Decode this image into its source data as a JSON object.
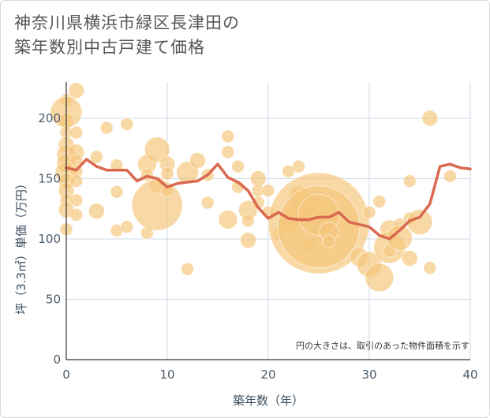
{
  "title_line1": "神奈川県横浜市緑区長津田の",
  "title_line2": "築年数別中古戸建て価格",
  "chart_data": {
    "type": "scatter",
    "title": "神奈川県横浜市緑区長津田の築年数別中古戸建て価格",
    "xlabel": "築年数（年）",
    "ylabel": "坪（3.3㎡）単価（万円）",
    "xlim": [
      0,
      40
    ],
    "ylim": [
      0,
      230
    ],
    "xticks": [
      0,
      10,
      20,
      30,
      40
    ],
    "yticks": [
      0,
      50,
      100,
      150,
      200
    ],
    "grid": true,
    "note": "円の大きさは、取引のあった物件面積を示す",
    "bubble_color": "#f4c67a",
    "line_color": "#d9694f",
    "bubbles": [
      {
        "x": 0,
        "y": 215,
        "s": 4
      },
      {
        "x": 0,
        "y": 205,
        "s": 10
      },
      {
        "x": 0,
        "y": 198,
        "s": 5
      },
      {
        "x": 0,
        "y": 188,
        "s": 4
      },
      {
        "x": 0,
        "y": 178,
        "s": 5
      },
      {
        "x": 0,
        "y": 170,
        "s": 6
      },
      {
        "x": 0,
        "y": 163,
        "s": 6
      },
      {
        "x": 0,
        "y": 155,
        "s": 7
      },
      {
        "x": 0,
        "y": 148,
        "s": 5
      },
      {
        "x": 0,
        "y": 140,
        "s": 5
      },
      {
        "x": 0,
        "y": 132,
        "s": 4
      },
      {
        "x": 0,
        "y": 124,
        "s": 5
      },
      {
        "x": 0,
        "y": 108,
        "s": 4
      },
      {
        "x": 1,
        "y": 223,
        "s": 5
      },
      {
        "x": 1,
        "y": 188,
        "s": 4
      },
      {
        "x": 1,
        "y": 172,
        "s": 5
      },
      {
        "x": 1,
        "y": 165,
        "s": 4
      },
      {
        "x": 1,
        "y": 156,
        "s": 4
      },
      {
        "x": 1,
        "y": 148,
        "s": 4
      },
      {
        "x": 1,
        "y": 132,
        "s": 4
      },
      {
        "x": 1,
        "y": 120,
        "s": 4
      },
      {
        "x": 3,
        "y": 168,
        "s": 4
      },
      {
        "x": 3,
        "y": 123,
        "s": 5
      },
      {
        "x": 4,
        "y": 192,
        "s": 4
      },
      {
        "x": 5,
        "y": 161,
        "s": 4
      },
      {
        "x": 5,
        "y": 139,
        "s": 4
      },
      {
        "x": 5,
        "y": 107,
        "s": 4
      },
      {
        "x": 6,
        "y": 195,
        "s": 4
      },
      {
        "x": 6,
        "y": 110,
        "s": 4
      },
      {
        "x": 8,
        "y": 162,
        "s": 6
      },
      {
        "x": 8,
        "y": 153,
        "s": 4
      },
      {
        "x": 8,
        "y": 105,
        "s": 4
      },
      {
        "x": 9,
        "y": 174,
        "s": 8
      },
      {
        "x": 9,
        "y": 145,
        "s": 5
      },
      {
        "x": 9,
        "y": 128,
        "s": 16
      },
      {
        "x": 10,
        "y": 162,
        "s": 5
      },
      {
        "x": 10,
        "y": 154,
        "s": 4
      },
      {
        "x": 10,
        "y": 140,
        "s": 4
      },
      {
        "x": 12,
        "y": 155,
        "s": 7
      },
      {
        "x": 12,
        "y": 75,
        "s": 4
      },
      {
        "x": 13,
        "y": 165,
        "s": 5
      },
      {
        "x": 14,
        "y": 153,
        "s": 4
      },
      {
        "x": 14,
        "y": 130,
        "s": 4
      },
      {
        "x": 16,
        "y": 185,
        "s": 4
      },
      {
        "x": 16,
        "y": 172,
        "s": 4
      },
      {
        "x": 16,
        "y": 116,
        "s": 6
      },
      {
        "x": 17,
        "y": 160,
        "s": 4
      },
      {
        "x": 17,
        "y": 143,
        "s": 4
      },
      {
        "x": 18,
        "y": 124,
        "s": 6
      },
      {
        "x": 18,
        "y": 115,
        "s": 4
      },
      {
        "x": 18,
        "y": 99,
        "s": 5
      },
      {
        "x": 19,
        "y": 150,
        "s": 5
      },
      {
        "x": 19,
        "y": 140,
        "s": 4
      },
      {
        "x": 19,
        "y": 130,
        "s": 4
      },
      {
        "x": 20,
        "y": 140,
        "s": 4
      },
      {
        "x": 20,
        "y": 122,
        "s": 4
      },
      {
        "x": 21,
        "y": 104,
        "s": 4
      },
      {
        "x": 22,
        "y": 156,
        "s": 4
      },
      {
        "x": 22,
        "y": 113,
        "s": 6
      },
      {
        "x": 23,
        "y": 160,
        "s": 4
      },
      {
        "x": 23,
        "y": 136,
        "s": 6
      },
      {
        "x": 23,
        "y": 120,
        "s": 8
      },
      {
        "x": 24,
        "y": 94,
        "s": 4
      },
      {
        "x": 25,
        "y": 113,
        "s": 32
      },
      {
        "x": 25,
        "y": 110,
        "s": 26
      },
      {
        "x": 25,
        "y": 120,
        "s": 13
      },
      {
        "x": 26,
        "y": 106,
        "s": 6
      },
      {
        "x": 26,
        "y": 98,
        "s": 4
      },
      {
        "x": 29,
        "y": 85,
        "s": 6
      },
      {
        "x": 30,
        "y": 79,
        "s": 8
      },
      {
        "x": 30,
        "y": 122,
        "s": 4
      },
      {
        "x": 31,
        "y": 68,
        "s": 9
      },
      {
        "x": 31,
        "y": 131,
        "s": 4
      },
      {
        "x": 32,
        "y": 108,
        "s": 6
      },
      {
        "x": 32,
        "y": 93,
        "s": 10
      },
      {
        "x": 32,
        "y": 90,
        "s": 4
      },
      {
        "x": 33,
        "y": 112,
        "s": 4
      },
      {
        "x": 33,
        "y": 101,
        "s": 8
      },
      {
        "x": 34,
        "y": 148,
        "s": 4
      },
      {
        "x": 34,
        "y": 117,
        "s": 4
      },
      {
        "x": 34,
        "y": 84,
        "s": 5
      },
      {
        "x": 35,
        "y": 114,
        "s": 8
      },
      {
        "x": 36,
        "y": 200,
        "s": 5
      },
      {
        "x": 36,
        "y": 76,
        "s": 4
      },
      {
        "x": 38,
        "y": 152,
        "s": 4
      }
    ],
    "line": {
      "x": [
        0,
        1,
        2,
        3,
        4,
        5,
        6,
        7,
        8,
        9,
        10,
        11,
        12,
        13,
        14,
        15,
        16,
        17,
        18,
        19,
        20,
        21,
        22,
        23,
        24,
        25,
        26,
        27,
        28,
        29,
        30,
        31,
        32,
        33,
        34,
        35,
        36,
        37,
        38,
        39,
        40
      ],
      "y": [
        159,
        157,
        166,
        160,
        157,
        157,
        157,
        148,
        152,
        150,
        143,
        146,
        147,
        148,
        153,
        162,
        151,
        147,
        140,
        126,
        117,
        122,
        117,
        116,
        116,
        118,
        118,
        122,
        114,
        112,
        110,
        103,
        100,
        107,
        115,
        118,
        129,
        160,
        162,
        159,
        158
      ]
    }
  }
}
